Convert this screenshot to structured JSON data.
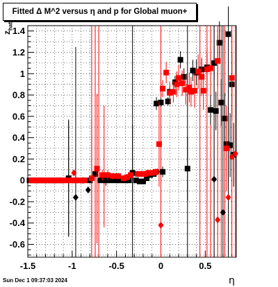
{
  "chart_data": {
    "type": "scatter",
    "title": "Fitted Δ M^2 versus η and p for Global muon+",
    "xlabel": "η",
    "ylabel": "z_{hat}",
    "xlim": [
      -1.5,
      0.85
    ],
    "ylim": [
      -0.72,
      1.45
    ],
    "x_tick_labels": [
      "-1.5",
      "-1",
      "-0.5",
      "0",
      "0.5"
    ],
    "y_tick_labels": [
      "-0.6",
      "-0.4",
      "-0.2",
      "0",
      "0.2",
      "0.4",
      "0.6",
      "0.8",
      "1",
      "1.2",
      "1.4"
    ],
    "grid": true,
    "series": [
      {
        "marker": "square",
        "color": "#000000",
        "points": [
          {
            "x": -1.48,
            "y": 0.0,
            "err": 0.0
          },
          {
            "x": -1.44,
            "y": 0.0,
            "err": 0.0
          },
          {
            "x": -1.4,
            "y": 0.0,
            "err": 0.0
          },
          {
            "x": -1.36,
            "y": 0.0,
            "err": 0.0
          },
          {
            "x": -1.32,
            "y": 0.0,
            "err": 0.0
          },
          {
            "x": -1.28,
            "y": 0.0,
            "err": 0.0
          },
          {
            "x": -1.24,
            "y": 0.0,
            "err": 0.0
          },
          {
            "x": -1.2,
            "y": 0.0,
            "err": 0.0
          },
          {
            "x": -1.16,
            "y": 0.0,
            "err": 0.0
          },
          {
            "x": -1.12,
            "y": 0.0,
            "err": 0.0
          },
          {
            "x": -1.04,
            "y": 0.02,
            "err": 0.55
          },
          {
            "x": -0.96,
            "y": 0.0,
            "err": 0.02
          },
          {
            "x": -0.88,
            "y": 0.0,
            "err": 0.03
          },
          {
            "x": -0.8,
            "y": 0.0,
            "err": 0.02
          },
          {
            "x": -0.74,
            "y": 0.06,
            "err": 0.05
          },
          {
            "x": -0.68,
            "y": 0.0,
            "err": 0.02
          },
          {
            "x": -0.62,
            "y": 0.0,
            "err": 0.05
          },
          {
            "x": -0.56,
            "y": 0.0,
            "err": 0.02
          },
          {
            "x": -0.5,
            "y": 0.0,
            "err": 0.02
          },
          {
            "x": -0.45,
            "y": 0.0,
            "err": 0.02
          },
          {
            "x": -0.4,
            "y": 0.0,
            "err": 0.02
          },
          {
            "x": -0.36,
            "y": 0.0,
            "err": 0.02
          },
          {
            "x": -0.32,
            "y": 0.07,
            "err": 0.45
          },
          {
            "x": -0.28,
            "y": 0.0,
            "err": 0.02
          },
          {
            "x": -0.24,
            "y": -0.01,
            "err": 0.02
          },
          {
            "x": -0.2,
            "y": -0.01,
            "err": 0.02
          },
          {
            "x": -0.16,
            "y": 0.02,
            "err": 0.02
          },
          {
            "x": -0.12,
            "y": 0.05,
            "err": 0.02
          },
          {
            "x": -0.08,
            "y": 0.06,
            "err": 0.02
          },
          {
            "x": -0.05,
            "y": 0.72,
            "err": 0.06
          },
          {
            "x": 0.02,
            "y": 0.08,
            "err": 0.05
          },
          {
            "x": 0.0,
            "y": 0.73,
            "err": 0.04
          },
          {
            "x": 0.08,
            "y": 0.74,
            "err": 0.04
          },
          {
            "x": 0.1,
            "y": 0.83,
            "err": 0.05
          },
          {
            "x": 0.16,
            "y": 0.92,
            "err": 0.06
          },
          {
            "x": 0.22,
            "y": 1.13,
            "err": 0.08
          },
          {
            "x": 0.26,
            "y": 0.97,
            "err": 0.08
          },
          {
            "x": 0.3,
            "y": 0.11,
            "err": 0.3
          },
          {
            "x": 0.36,
            "y": 1.03,
            "err": 0.1
          },
          {
            "x": 0.4,
            "y": 1.01,
            "err": 0.12
          },
          {
            "x": 0.46,
            "y": 1.04,
            "err": 0.1
          },
          {
            "x": 0.52,
            "y": 1.06,
            "err": 0.12
          },
          {
            "x": 0.56,
            "y": 0.66,
            "err": 0.14
          },
          {
            "x": 0.6,
            "y": 1.1,
            "err": 0.16
          },
          {
            "x": 0.62,
            "y": 0.65,
            "err": 0.18
          },
          {
            "x": 0.66,
            "y": 1.29,
            "err": 0.2
          },
          {
            "x": 0.68,
            "y": 0.73,
            "err": 0.22
          },
          {
            "x": 0.72,
            "y": 0.58,
            "err": 0.24
          },
          {
            "x": 0.74,
            "y": 0.34,
            "err": 0.3
          },
          {
            "x": 0.76,
            "y": 1.37,
            "err": 0.26
          },
          {
            "x": 0.78,
            "y": 0.33,
            "err": 0.3
          },
          {
            "x": 0.8,
            "y": 0.9,
            "err": 0.3
          },
          {
            "x": 0.82,
            "y": 0.24,
            "err": 0.3
          }
        ]
      },
      {
        "marker": "diamond",
        "color": "#000000",
        "points": [
          {
            "x": -0.96,
            "y": -0.16,
            "err": 0.0
          },
          {
            "x": -0.82,
            "y": -0.09,
            "err": 0.0
          },
          {
            "x": -0.04,
            "y": 0.08,
            "err": 0.0
          },
          {
            "x": 0.6,
            "y": 0.01,
            "err": 0.0
          },
          {
            "x": 0.7,
            "y": -0.3,
            "err": 0.0
          }
        ]
      },
      {
        "marker": "square",
        "color": "#ff0000",
        "points": [
          {
            "x": -1.46,
            "y": 0.0,
            "err": 0.0
          },
          {
            "x": -1.42,
            "y": 0.0,
            "err": 0.0
          },
          {
            "x": -1.38,
            "y": 0.0,
            "err": 0.0
          },
          {
            "x": -1.34,
            "y": 0.0,
            "err": 0.0
          },
          {
            "x": -1.3,
            "y": 0.0,
            "err": 0.0
          },
          {
            "x": -1.26,
            "y": 0.0,
            "err": 0.0
          },
          {
            "x": -1.22,
            "y": 0.0,
            "err": 0.0
          },
          {
            "x": -1.18,
            "y": 0.0,
            "err": 0.0
          },
          {
            "x": -1.14,
            "y": 0.0,
            "err": 0.0
          },
          {
            "x": -1.1,
            "y": 0.0,
            "err": 0.0
          },
          {
            "x": -1.06,
            "y": 0.0,
            "err": 0.0
          },
          {
            "x": -1.02,
            "y": 0.0,
            "err": 0.0
          },
          {
            "x": -0.98,
            "y": 0.0,
            "err": 0.02
          },
          {
            "x": -0.94,
            "y": 0.0,
            "err": 0.02
          },
          {
            "x": -0.9,
            "y": 0.0,
            "err": 0.02
          },
          {
            "x": -0.86,
            "y": 0.0,
            "err": 0.02
          },
          {
            "x": -0.78,
            "y": 0.02,
            "err": 0.55
          },
          {
            "x": -0.72,
            "y": 0.11,
            "err": 0.7
          },
          {
            "x": -0.66,
            "y": 0.05,
            "err": 0.05
          },
          {
            "x": -0.6,
            "y": 0.05,
            "err": 0.05
          },
          {
            "x": -0.54,
            "y": 0.04,
            "err": 0.03
          },
          {
            "x": -0.48,
            "y": 0.04,
            "err": 0.03
          },
          {
            "x": -0.42,
            "y": 0.02,
            "err": 0.03
          },
          {
            "x": -0.38,
            "y": 0.03,
            "err": 0.03
          },
          {
            "x": -0.34,
            "y": 0.05,
            "err": 0.03
          },
          {
            "x": -0.26,
            "y": 0.06,
            "err": 0.03
          },
          {
            "x": -0.22,
            "y": 0.06,
            "err": 0.03
          },
          {
            "x": -0.18,
            "y": 0.06,
            "err": 0.03
          },
          {
            "x": -0.14,
            "y": 0.07,
            "err": 0.03
          },
          {
            "x": -0.1,
            "y": 0.07,
            "err": 0.03
          },
          {
            "x": -0.06,
            "y": 0.08,
            "err": 0.03
          },
          {
            "x": -0.02,
            "y": 0.34,
            "err": 0.4
          },
          {
            "x": 0.02,
            "y": 0.86,
            "err": 0.08
          },
          {
            "x": 0.06,
            "y": 1.01,
            "err": 0.1
          },
          {
            "x": 0.1,
            "y": 0.82,
            "err": 0.1
          },
          {
            "x": 0.14,
            "y": 0.83,
            "err": 0.1
          },
          {
            "x": 0.18,
            "y": 0.9,
            "err": 0.12
          },
          {
            "x": 0.2,
            "y": 0.96,
            "err": 0.12
          },
          {
            "x": 0.24,
            "y": 0.91,
            "err": 0.12
          },
          {
            "x": 0.28,
            "y": 0.85,
            "err": 0.14
          },
          {
            "x": 0.32,
            "y": 0.87,
            "err": 0.14
          },
          {
            "x": 0.34,
            "y": 0.83,
            "err": 0.14
          },
          {
            "x": 0.38,
            "y": 0.84,
            "err": 0.16
          },
          {
            "x": 0.42,
            "y": 1.02,
            "err": 0.16
          },
          {
            "x": 0.46,
            "y": 0.97,
            "err": 0.18
          },
          {
            "x": 0.48,
            "y": 0.84,
            "err": 0.18
          },
          {
            "x": 0.52,
            "y": 1.04,
            "err": 0.2
          },
          {
            "x": 0.56,
            "y": 1.05,
            "err": 0.2
          },
          {
            "x": 0.64,
            "y": 1.12,
            "err": 0.24
          },
          {
            "x": 0.74,
            "y": 0.3,
            "err": 0.4
          },
          {
            "x": 0.8,
            "y": 0.96,
            "err": 0.4
          }
        ]
      },
      {
        "marker": "diamond",
        "color": "#ff0000",
        "points": [
          {
            "x": -0.98,
            "y": 0.07,
            "err": 0.0
          },
          {
            "x": 0.0,
            "y": -0.42,
            "err": 0.0
          },
          {
            "x": 0.64,
            "y": -0.37,
            "err": 0.0
          },
          {
            "x": 0.76,
            "y": -0.16,
            "err": 0.0
          },
          {
            "x": 0.8,
            "y": 0.22,
            "err": 0.0
          },
          {
            "x": 0.84,
            "y": 0.25,
            "err": 0.0
          }
        ]
      }
    ],
    "error_bars": [
      {
        "x": -1.04,
        "y0": -0.52,
        "y1": 0.56,
        "color": "#000000"
      },
      {
        "x": -0.96,
        "y0": -0.72,
        "y1": 1.25,
        "color": "#000000"
      },
      {
        "x": -0.78,
        "y0": -0.72,
        "y1": 1.45,
        "color": "#ff0000"
      },
      {
        "x": -0.74,
        "y0": -0.72,
        "y1": 1.45,
        "color": "#ff0000"
      },
      {
        "x": -0.7,
        "y0": -0.72,
        "y1": 1.45,
        "color": "#ff0000"
      },
      {
        "x": -0.64,
        "y0": -0.44,
        "y1": 0.7,
        "color": "#ff0000"
      },
      {
        "x": -0.32,
        "y0": -0.72,
        "y1": 1.45,
        "color": "#000000"
      },
      {
        "x": 0.0,
        "y0": -0.72,
        "y1": 1.45,
        "color": "#ff0000"
      },
      {
        "x": 0.3,
        "y0": -0.72,
        "y1": 1.45,
        "color": "#000000"
      },
      {
        "x": 0.44,
        "y0": -0.72,
        "y1": 1.45,
        "color": "#ff0000"
      },
      {
        "x": 0.52,
        "y0": -0.72,
        "y1": 1.45,
        "color": "#ff0000"
      },
      {
        "x": 0.56,
        "y0": -0.72,
        "y1": 1.45,
        "color": "#ff0000"
      },
      {
        "x": 0.6,
        "y0": -0.72,
        "y1": 1.45,
        "color": "#ff0000"
      },
      {
        "x": 0.64,
        "y0": -0.72,
        "y1": 1.45,
        "color": "#ff0000"
      },
      {
        "x": 0.68,
        "y0": -0.72,
        "y1": 1.45,
        "color": "#ff0000"
      },
      {
        "x": 0.72,
        "y0": -0.72,
        "y1": 1.45,
        "color": "#ff0000"
      },
      {
        "x": 0.76,
        "y0": -0.72,
        "y1": 1.45,
        "color": "#ff0000"
      },
      {
        "x": 0.8,
        "y0": -0.72,
        "y1": 1.45,
        "color": "#ff0000"
      },
      {
        "x": 0.84,
        "y0": -0.72,
        "y1": 1.45,
        "color": "#ff0000"
      },
      {
        "x": 0.6,
        "y0": -0.72,
        "y1": 1.45,
        "color": "#000000"
      },
      {
        "x": 0.7,
        "y0": -0.72,
        "y1": 1.45,
        "color": "#000000"
      },
      {
        "x": 0.76,
        "y0": -0.72,
        "y1": 1.45,
        "color": "#000000"
      }
    ],
    "datestamp": "Sun Dec  1 09:37:03 2024"
  }
}
